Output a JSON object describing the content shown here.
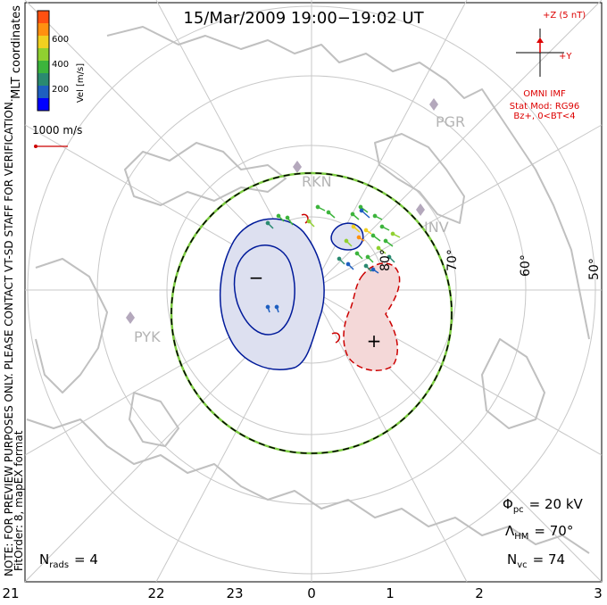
{
  "title": "15/Mar/2009  19:00−19:02  UT",
  "coordinate_label": "MLT coordinates",
  "preview_note": "NOTE: FOR PREVIEW PURPOSES ONLY. PLEASE CONTACT VT-SD STAFF FOR VERIFICATION.",
  "fit_note": "FitOrder: 8, mapEX format",
  "velocity_scale": {
    "axis_label": "Vel [m/s]",
    "ticks": [
      "200",
      "400",
      "600"
    ],
    "colors": [
      "#0000ff",
      "#1e5fc0",
      "#2a8a70",
      "#3cb43c",
      "#90d030",
      "#f0d020",
      "#ff9010",
      "#ff5010",
      "#ff0000"
    ]
  },
  "vector_reference": "1000 m/s",
  "imf": {
    "z_label": "+Z (5 nT)",
    "y_label": "+Y",
    "source": "OMNI IMF",
    "model": "Stat Mod: RG96",
    "condition": "Bz+, 0<BT<4"
  },
  "latitude_labels": [
    "80°",
    "70°",
    "60°",
    "50°"
  ],
  "mlt_labels": [
    "21",
    "22",
    "23",
    "0",
    "1",
    "2",
    "3"
  ],
  "stations": [
    "PGR",
    "RKN",
    "INV",
    "PYK"
  ],
  "cells": {
    "negative": "−",
    "positive": "+"
  },
  "stats": {
    "phi_symbol": "Φ",
    "phi_sub": "pc",
    "phi_value": "= 20 kV",
    "lambda_symbol": "Λ",
    "lambda_sub": "HM",
    "lambda_value": "= 70°",
    "nvc_symbol": "N",
    "nvc_sub": "vc",
    "nvc_value": "= 74",
    "nrads_symbol": "N",
    "nrads_sub": "rads",
    "nrads_value": "= 4"
  },
  "colors": {
    "grid": "#c8c8c8",
    "coast": "#c0c0c0",
    "imf": "#dd0000",
    "negative_cell_fill": "#dde0f0",
    "negative_cell_line": "#001a9a",
    "positive_cell_fill": "#f4d8d8",
    "positive_cell_line": "#cc0000",
    "station": "#b4a8bc"
  }
}
